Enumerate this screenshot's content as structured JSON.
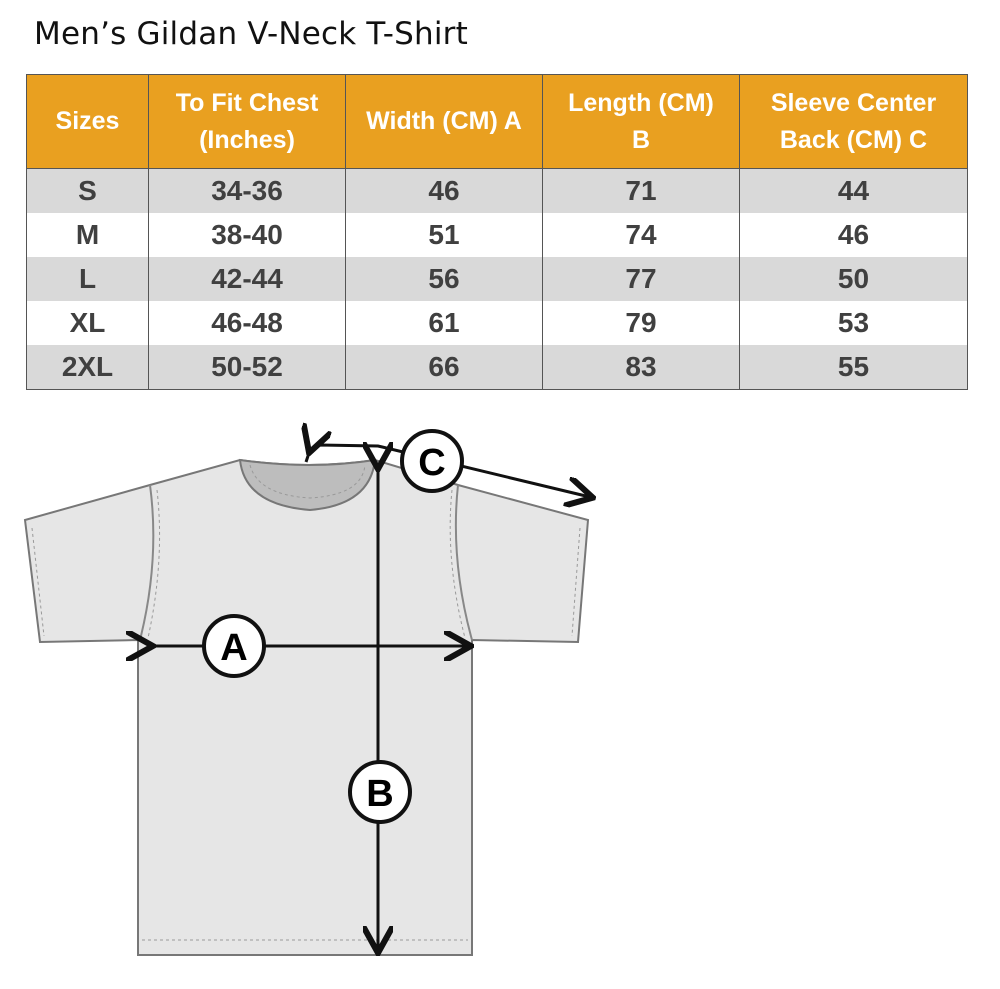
{
  "title": "Men’s Gildan V-Neck T-Shirt",
  "table": {
    "headers": [
      [
        "Sizes"
      ],
      [
        "To Fit Chest",
        "(Inches)"
      ],
      [
        "Width (CM) A"
      ],
      [
        "Length  (CM)",
        "B"
      ],
      [
        "Sleeve Center",
        "Back (CM) C"
      ]
    ],
    "rows": [
      [
        "S",
        "34-36",
        "46",
        "71",
        "44"
      ],
      [
        "M",
        "38-40",
        "51",
        "74",
        "46"
      ],
      [
        "L",
        "42-44",
        "56",
        "77",
        "50"
      ],
      [
        "XL",
        "46-48",
        "61",
        "79",
        "53"
      ],
      [
        "2XL",
        "50-52",
        "66",
        "83",
        "55"
      ]
    ]
  },
  "diagram": {
    "labels": {
      "a": "A",
      "b": "B",
      "c": "C"
    }
  },
  "colors": {
    "header": "#E9A020",
    "stripe": "#D9D9D9",
    "text": "#404040"
  }
}
